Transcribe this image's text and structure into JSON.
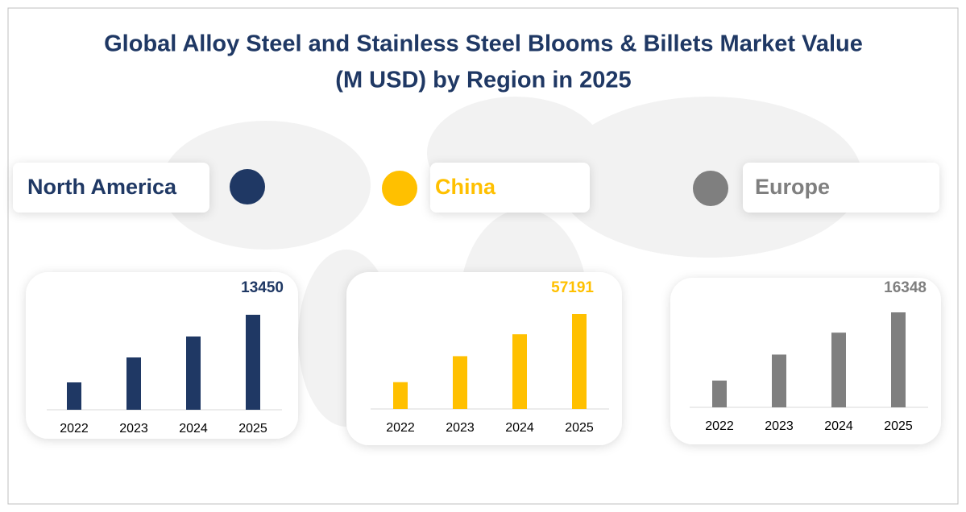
{
  "title": "Global Alloy Steel and Stainless Steel Blooms & Billets Market Value (M USD) by Region in 2025",
  "chart_data": [
    {
      "type": "bar",
      "title": "North America",
      "color": "#1f3864",
      "categories": [
        "2022",
        "2023",
        "2024",
        "2025"
      ],
      "values": [
        3876,
        7409,
        10372,
        13450
      ]
    },
    {
      "type": "bar",
      "title": "China",
      "color": "#ffc000",
      "categories": [
        "2022",
        "2023",
        "2024",
        "2025"
      ],
      "values": [
        16131,
        31773,
        44971,
        57191
      ]
    },
    {
      "type": "bar",
      "title": "Europe",
      "color": "#7f7f7f",
      "categories": [
        "2022",
        "2023",
        "2024",
        "2025"
      ],
      "values": [
        4611,
        9082,
        12855,
        16348
      ]
    }
  ]
}
